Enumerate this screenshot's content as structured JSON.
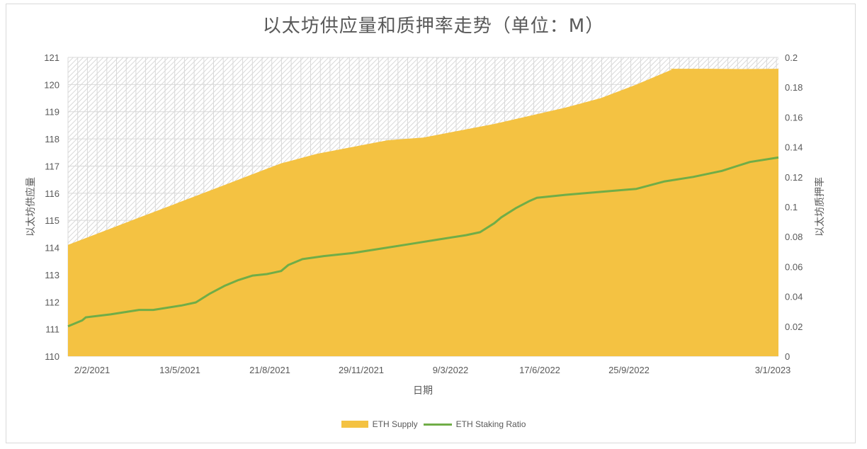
{
  "chart_data": {
    "type": "area+line",
    "title": "以太坊供应量和质押率走势（单位：M）",
    "xlabel": "日期",
    "ylabel_left": "以太坊供应量",
    "ylabel_right": "以太坊质押率",
    "ylim_left": [
      110,
      121
    ],
    "ylim_right": [
      0,
      0.2
    ],
    "yticks_left": [
      "121",
      "120",
      "119",
      "118",
      "117",
      "116",
      "115",
      "114",
      "113",
      "112",
      "111",
      "110"
    ],
    "yticks_right": [
      "0.2",
      "0.18",
      "0.16",
      "0.14",
      "0.12",
      "0.1",
      "0.08",
      "0.06",
      "0.04",
      "0.02",
      "0"
    ],
    "x_tick_labels": [
      "2/2/2021",
      "13/5/2021",
      "21/8/2021",
      "29/11/2021",
      "9/3/2022",
      "17/6/2022",
      "25/9/2022",
      "3/1/2023"
    ],
    "grid": true,
    "legend_position": "bottom",
    "series": [
      {
        "name": "ETH Supply",
        "type": "area",
        "axis": "left",
        "color": "#F4C242",
        "x_fraction": [
          0,
          0.05,
          0.1,
          0.15,
          0.2,
          0.25,
          0.3,
          0.315,
          0.35,
          0.4,
          0.45,
          0.5,
          0.5,
          0.55,
          0.6,
          0.65,
          0.7,
          0.75,
          0.8,
          0.85,
          0.847,
          0.9,
          0.95,
          1.0
        ],
        "values": [
          114.1,
          114.6,
          115.1,
          115.6,
          116.1,
          116.6,
          117.1,
          117.2,
          117.45,
          117.7,
          117.95,
          118.05,
          118.05,
          118.3,
          118.55,
          118.85,
          119.15,
          119.5,
          120.0,
          120.55,
          120.58,
          120.58,
          120.57,
          120.58
        ]
      },
      {
        "name": "ETH Staking Ratio",
        "type": "line",
        "axis": "right",
        "color": "#70AD47",
        "x_fraction": [
          0,
          0.02,
          0.025,
          0.06,
          0.1,
          0.12,
          0.16,
          0.18,
          0.2,
          0.22,
          0.24,
          0.26,
          0.28,
          0.3,
          0.31,
          0.33,
          0.36,
          0.4,
          0.44,
          0.48,
          0.52,
          0.56,
          0.58,
          0.6,
          0.61,
          0.63,
          0.65,
          0.66,
          0.7,
          0.75,
          0.8,
          0.84,
          0.88,
          0.92,
          0.94,
          0.96,
          1.0
        ],
        "values": [
          0.02,
          0.024,
          0.026,
          0.028,
          0.031,
          0.031,
          0.034,
          0.036,
          0.042,
          0.047,
          0.051,
          0.054,
          0.055,
          0.057,
          0.061,
          0.065,
          0.067,
          0.069,
          0.072,
          0.075,
          0.078,
          0.081,
          0.083,
          0.089,
          0.093,
          0.099,
          0.104,
          0.106,
          0.108,
          0.11,
          0.112,
          0.117,
          0.12,
          0.124,
          0.127,
          0.13,
          0.133
        ]
      }
    ]
  },
  "legend": {
    "supply_label": "ETH Supply",
    "staking_label": "ETH Staking Ratio"
  }
}
